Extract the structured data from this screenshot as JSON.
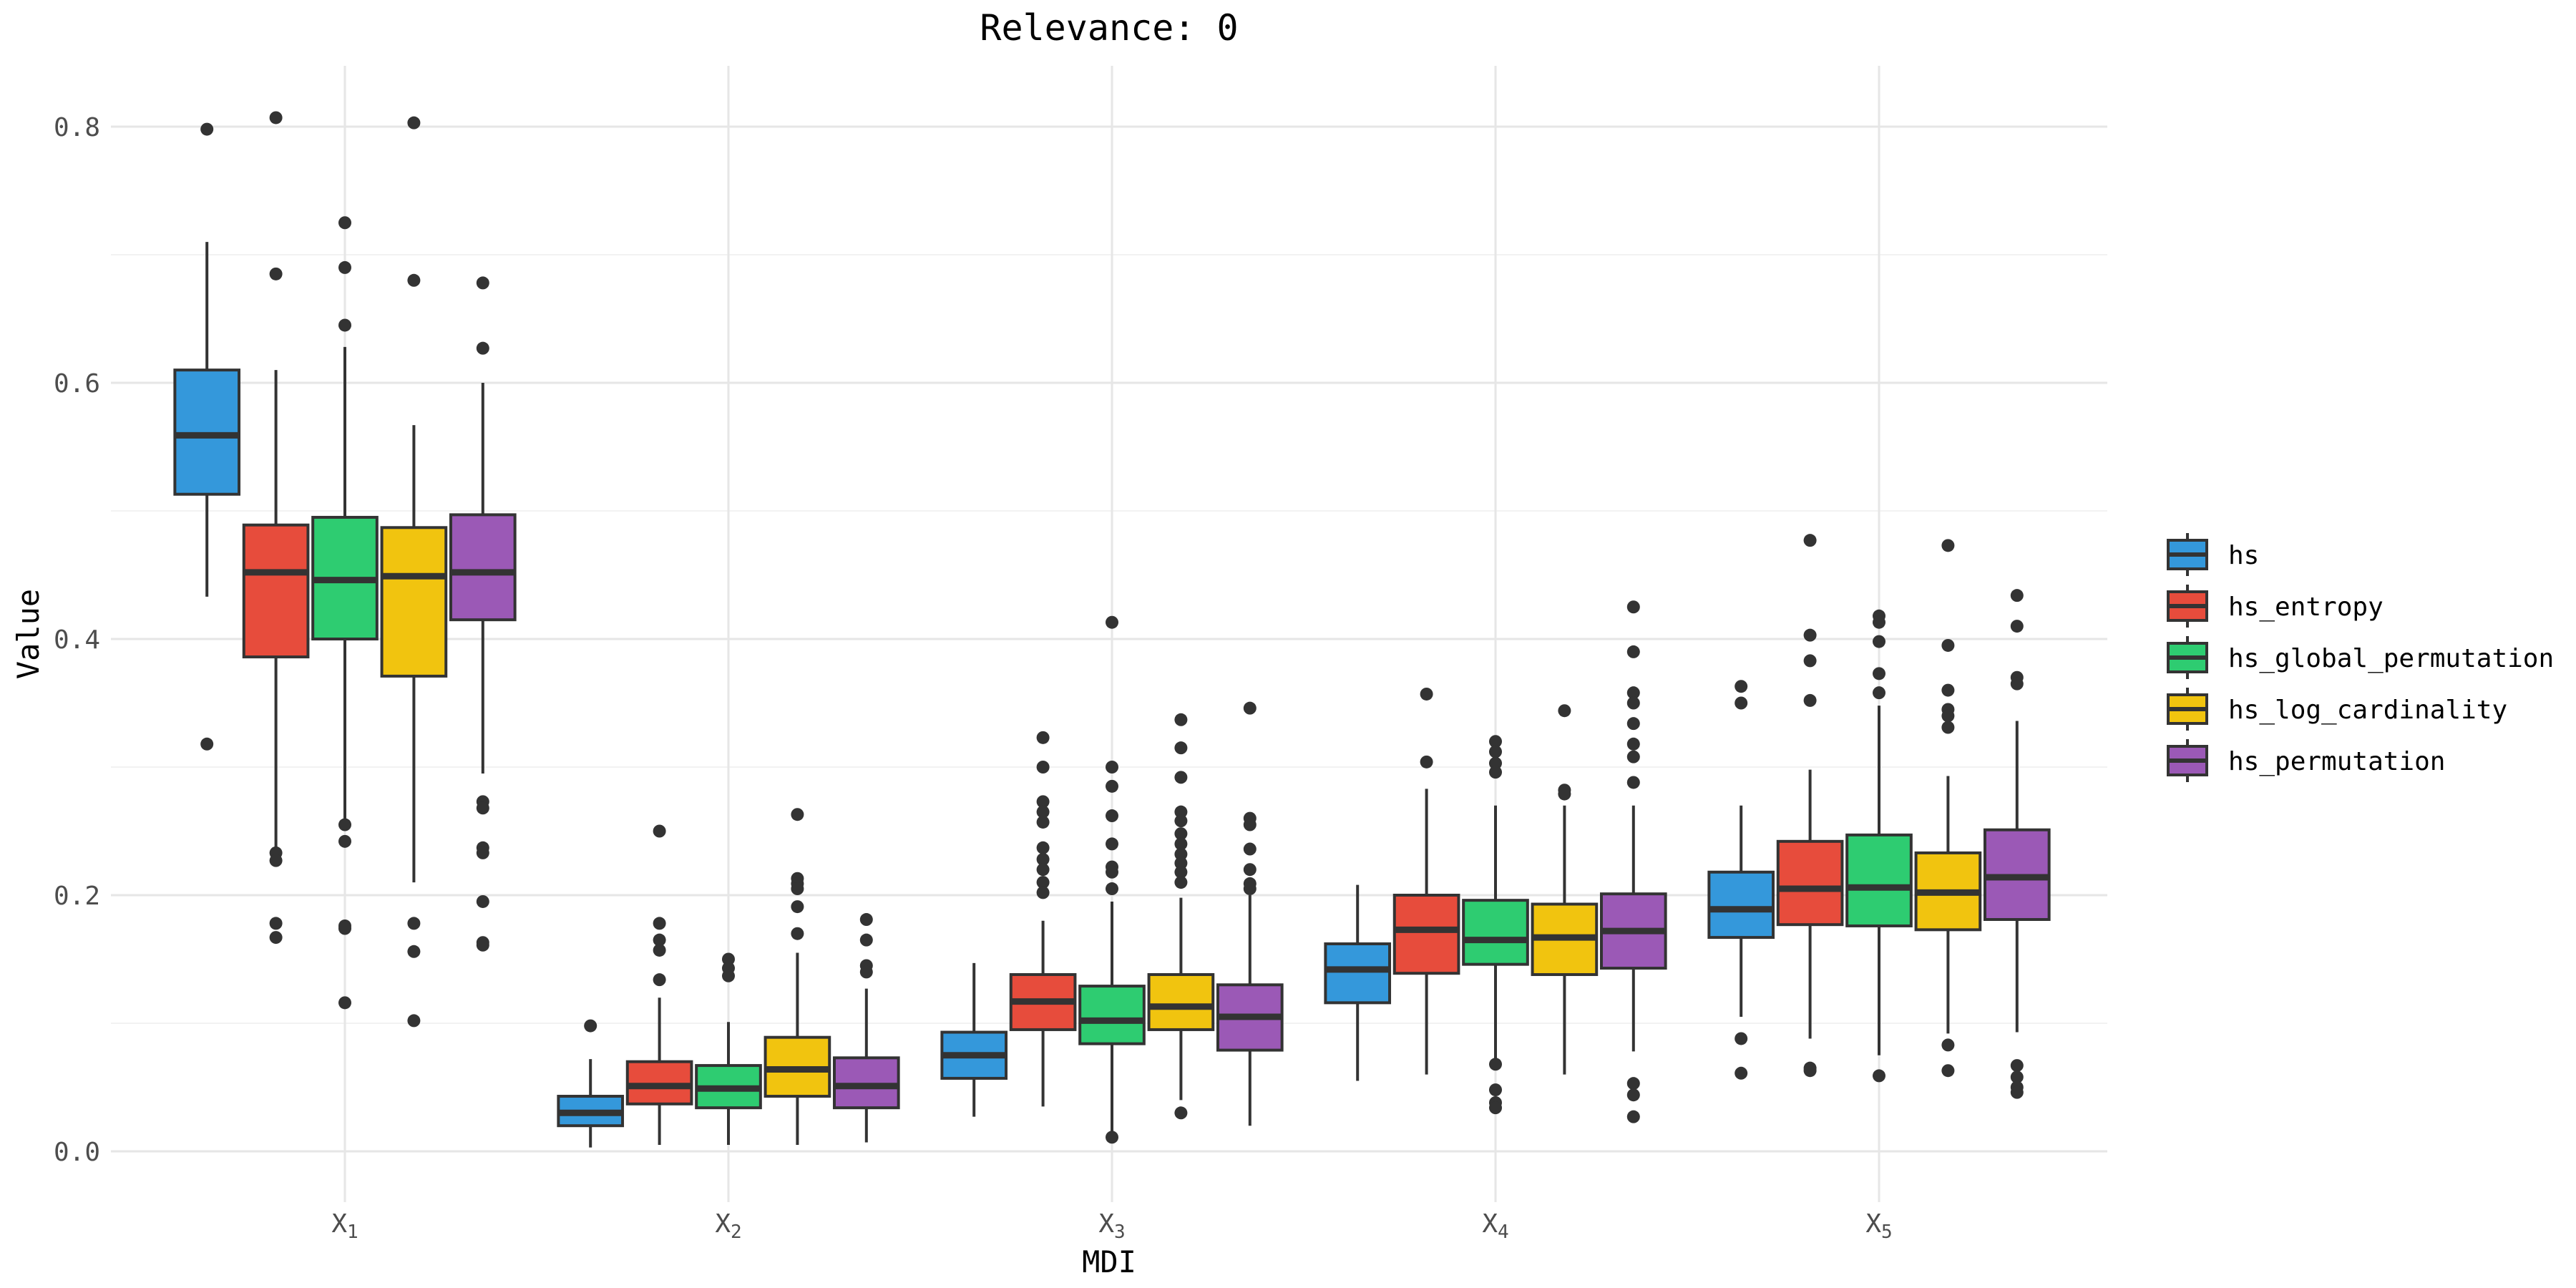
{
  "chart_data": {
    "type": "boxplot",
    "title": "Relevance: 0",
    "xlabel": "MDI",
    "ylabel": "Value",
    "ylim": [
      -0.04,
      0.84
    ],
    "yticks": [
      0.0,
      0.2,
      0.4,
      0.6,
      0.8
    ],
    "ytick_labels": [
      "0.0",
      "0.2",
      "0.4",
      "0.6",
      "0.8"
    ],
    "categories": [
      {
        "base": "X",
        "sub": "1"
      },
      {
        "base": "X",
        "sub": "2"
      },
      {
        "base": "X",
        "sub": "3"
      },
      {
        "base": "X",
        "sub": "4"
      },
      {
        "base": "X",
        "sub": "5"
      }
    ],
    "grid": true,
    "legend_position": "right",
    "series": [
      {
        "name": "hs",
        "color": "#3498db",
        "boxes": [
          {
            "low": 0.433,
            "q1": 0.513,
            "median": 0.559,
            "q3": 0.61,
            "high": 0.71,
            "outliers": [
              0.798,
              0.318
            ]
          },
          {
            "low": 0.003,
            "q1": 0.02,
            "median": 0.03,
            "q3": 0.043,
            "high": 0.072,
            "outliers": [
              0.098
            ]
          },
          {
            "low": 0.027,
            "q1": 0.057,
            "median": 0.075,
            "q3": 0.093,
            "high": 0.147,
            "outliers": []
          },
          {
            "low": 0.055,
            "q1": 0.116,
            "median": 0.142,
            "q3": 0.162,
            "high": 0.208,
            "outliers": []
          },
          {
            "low": 0.105,
            "q1": 0.167,
            "median": 0.189,
            "q3": 0.218,
            "high": 0.27,
            "outliers": [
              0.363,
              0.35,
              0.088,
              0.061
            ]
          }
        ]
      },
      {
        "name": "hs_entropy",
        "color": "#e74c3c",
        "boxes": [
          {
            "low": 0.236,
            "q1": 0.386,
            "median": 0.452,
            "q3": 0.489,
            "high": 0.61,
            "outliers": [
              0.807,
              0.685,
              0.233,
              0.227,
              0.178,
              0.167
            ]
          },
          {
            "low": 0.005,
            "q1": 0.037,
            "median": 0.051,
            "q3": 0.07,
            "high": 0.12,
            "outliers": [
              0.25,
              0.178,
              0.165,
              0.157,
              0.134
            ]
          },
          {
            "low": 0.035,
            "q1": 0.095,
            "median": 0.117,
            "q3": 0.138,
            "high": 0.18,
            "outliers": [
              0.323,
              0.3,
              0.273,
              0.265,
              0.257,
              0.237,
              0.228,
              0.22,
              0.21,
              0.202
            ]
          },
          {
            "low": 0.06,
            "q1": 0.139,
            "median": 0.173,
            "q3": 0.2,
            "high": 0.283,
            "outliers": [
              0.357,
              0.304
            ]
          },
          {
            "low": 0.088,
            "q1": 0.177,
            "median": 0.205,
            "q3": 0.242,
            "high": 0.298,
            "outliers": [
              0.477,
              0.403,
              0.383,
              0.352,
              0.065,
              0.063
            ]
          }
        ]
      },
      {
        "name": "hs_global_permutation",
        "color": "#2ecc71",
        "boxes": [
          {
            "low": 0.257,
            "q1": 0.4,
            "median": 0.446,
            "q3": 0.495,
            "high": 0.628,
            "outliers": [
              0.725,
              0.69,
              0.645,
              0.255,
              0.242,
              0.176,
              0.174,
              0.116
            ]
          },
          {
            "low": 0.005,
            "q1": 0.034,
            "median": 0.049,
            "q3": 0.067,
            "high": 0.101,
            "outliers": [
              0.15,
              0.143,
              0.137
            ]
          },
          {
            "low": 0.01,
            "q1": 0.084,
            "median": 0.102,
            "q3": 0.129,
            "high": 0.195,
            "outliers": [
              0.413,
              0.3,
              0.285,
              0.262,
              0.24,
              0.222,
              0.218,
              0.205,
              0.011
            ]
          },
          {
            "low": 0.07,
            "q1": 0.146,
            "median": 0.165,
            "q3": 0.196,
            "high": 0.27,
            "outliers": [
              0.32,
              0.312,
              0.303,
              0.296,
              0.068,
              0.048,
              0.038,
              0.034
            ]
          },
          {
            "low": 0.075,
            "q1": 0.176,
            "median": 0.206,
            "q3": 0.247,
            "high": 0.348,
            "outliers": [
              0.418,
              0.413,
              0.398,
              0.373,
              0.358,
              0.059
            ]
          }
        ]
      },
      {
        "name": "hs_log_cardinality",
        "color": "#f1c40f",
        "boxes": [
          {
            "low": 0.21,
            "q1": 0.371,
            "median": 0.449,
            "q3": 0.487,
            "high": 0.567,
            "outliers": [
              0.803,
              0.68,
              0.178,
              0.156,
              0.102
            ]
          },
          {
            "low": 0.005,
            "q1": 0.043,
            "median": 0.064,
            "q3": 0.089,
            "high": 0.155,
            "outliers": [
              0.263,
              0.213,
              0.209,
              0.205,
              0.191,
              0.17
            ]
          },
          {
            "low": 0.04,
            "q1": 0.095,
            "median": 0.113,
            "q3": 0.138,
            "high": 0.198,
            "outliers": [
              0.337,
              0.315,
              0.292,
              0.265,
              0.258,
              0.248,
              0.24,
              0.232,
              0.225,
              0.218,
              0.21,
              0.03
            ]
          },
          {
            "low": 0.06,
            "q1": 0.138,
            "median": 0.167,
            "q3": 0.193,
            "high": 0.27,
            "outliers": [
              0.344,
              0.282,
              0.279
            ]
          },
          {
            "low": 0.092,
            "q1": 0.173,
            "median": 0.202,
            "q3": 0.233,
            "high": 0.293,
            "outliers": [
              0.473,
              0.395,
              0.36,
              0.345,
              0.34,
              0.331,
              0.083,
              0.063
            ]
          }
        ]
      },
      {
        "name": "hs_permutation",
        "color": "#9b59b6",
        "boxes": [
          {
            "low": 0.295,
            "q1": 0.415,
            "median": 0.452,
            "q3": 0.497,
            "high": 0.6,
            "outliers": [
              0.678,
              0.627,
              0.273,
              0.268,
              0.237,
              0.233,
              0.195,
              0.163,
              0.161
            ]
          },
          {
            "low": 0.007,
            "q1": 0.034,
            "median": 0.051,
            "q3": 0.073,
            "high": 0.127,
            "outliers": [
              0.181,
              0.165,
              0.145,
              0.14
            ]
          },
          {
            "low": 0.02,
            "q1": 0.079,
            "median": 0.105,
            "q3": 0.13,
            "high": 0.2,
            "outliers": [
              0.346,
              0.26,
              0.255,
              0.236,
              0.22,
              0.209,
              0.205
            ]
          },
          {
            "low": 0.078,
            "q1": 0.143,
            "median": 0.172,
            "q3": 0.201,
            "high": 0.27,
            "outliers": [
              0.425,
              0.39,
              0.358,
              0.35,
              0.334,
              0.318,
              0.308,
              0.288,
              0.053,
              0.044,
              0.027
            ]
          },
          {
            "low": 0.093,
            "q1": 0.181,
            "median": 0.214,
            "q3": 0.251,
            "high": 0.336,
            "outliers": [
              0.434,
              0.41,
              0.37,
              0.365,
              0.067,
              0.058,
              0.05,
              0.046
            ]
          }
        ]
      }
    ]
  }
}
